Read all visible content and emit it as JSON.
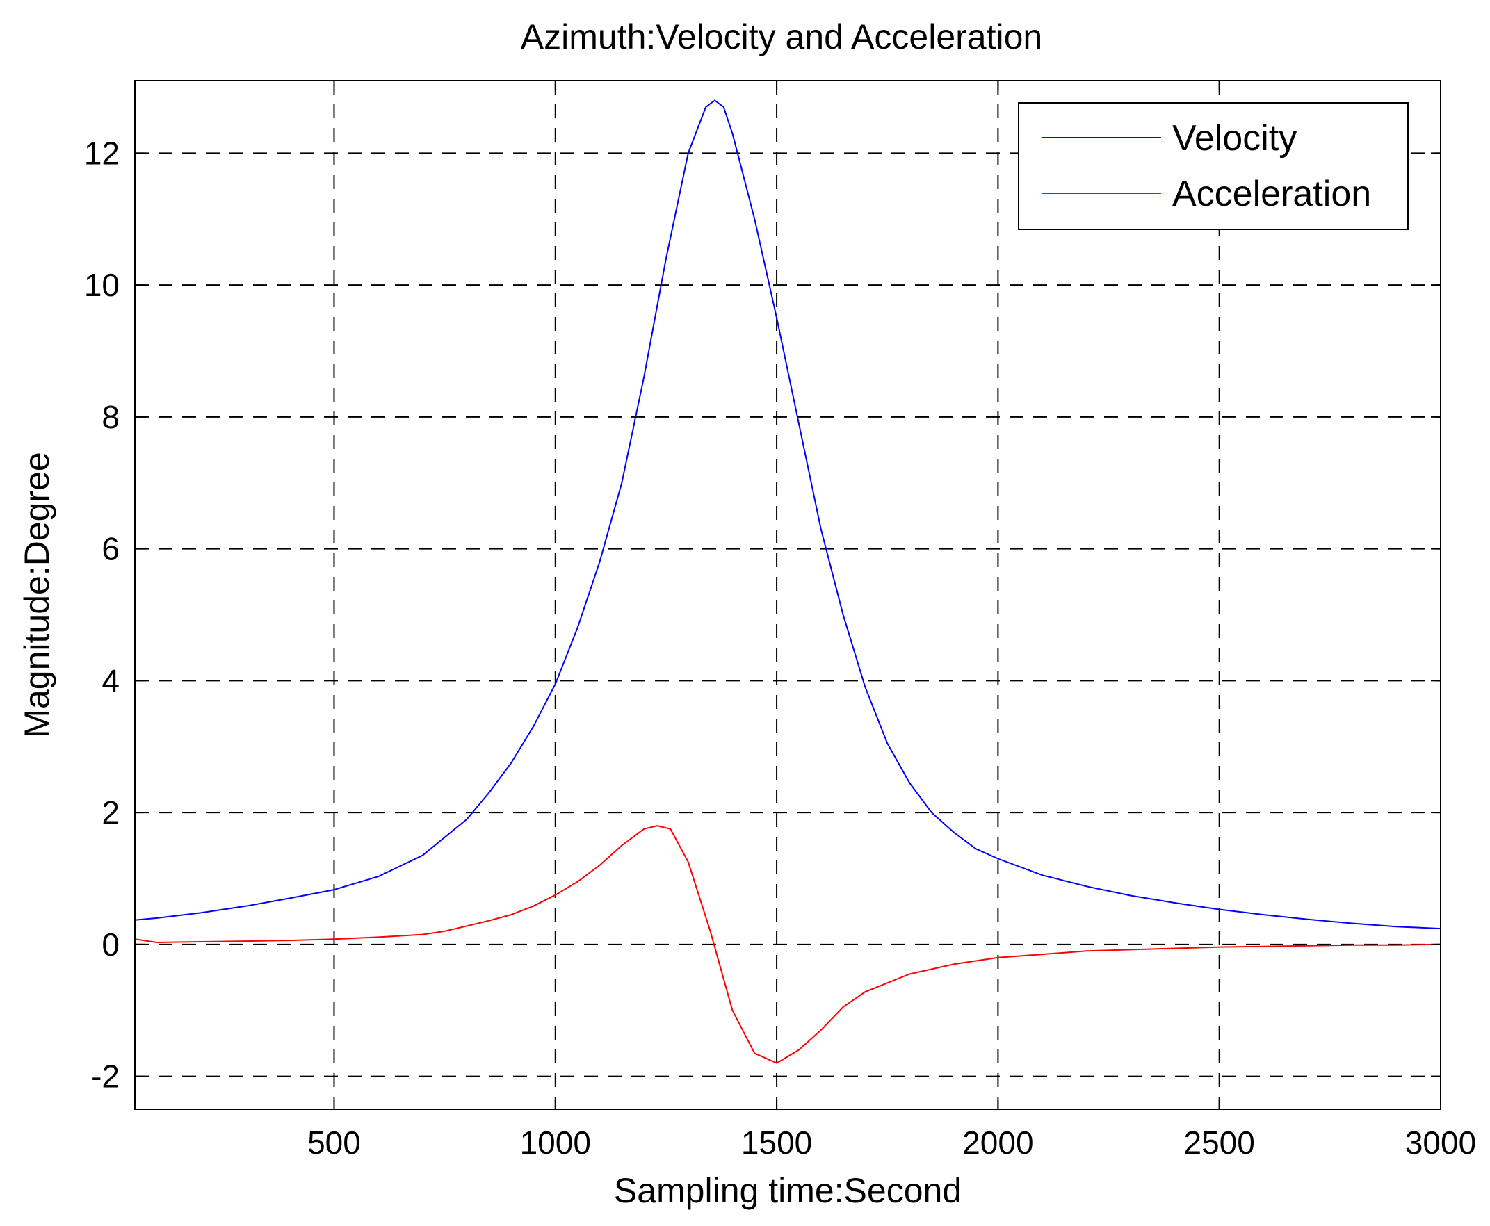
{
  "chart_data": {
    "type": "line",
    "title": "Azimuth:Velocity and Acceleration",
    "xlabel": "Sampling time:Second",
    "ylabel": "Magnitude:Degree",
    "xlim": [
      50,
      3000
    ],
    "ylim": [
      -2.5,
      13.1
    ],
    "xticks": [
      500,
      1000,
      1500,
      2000,
      2500,
      3000
    ],
    "yticks": [
      -2,
      0,
      2,
      4,
      6,
      8,
      10,
      12
    ],
    "grid": true,
    "legend_position": "top-right",
    "series": [
      {
        "name": "Velocity",
        "color": "#0000ff",
        "x": [
          50,
          100,
          200,
          300,
          400,
          500,
          600,
          700,
          800,
          850,
          900,
          950,
          1000,
          1050,
          1100,
          1150,
          1200,
          1250,
          1300,
          1340,
          1360,
          1380,
          1400,
          1450,
          1500,
          1550,
          1600,
          1650,
          1700,
          1750,
          1800,
          1850,
          1900,
          1950,
          2000,
          2100,
          2200,
          2300,
          2400,
          2500,
          2600,
          2700,
          2800,
          2900,
          3000
        ],
        "y": [
          0.37,
          0.4,
          0.48,
          0.58,
          0.7,
          0.83,
          1.03,
          1.35,
          1.9,
          2.3,
          2.75,
          3.3,
          3.95,
          4.8,
          5.8,
          7.0,
          8.6,
          10.4,
          12.0,
          12.7,
          12.8,
          12.7,
          12.3,
          11.0,
          9.5,
          7.9,
          6.3,
          5.0,
          3.9,
          3.05,
          2.45,
          2.0,
          1.7,
          1.45,
          1.3,
          1.05,
          0.88,
          0.74,
          0.63,
          0.53,
          0.45,
          0.38,
          0.32,
          0.27,
          0.24
        ]
      },
      {
        "name": "Acceleration",
        "color": "#ff0000",
        "x": [
          50,
          100,
          200,
          300,
          400,
          500,
          600,
          700,
          750,
          800,
          850,
          900,
          950,
          1000,
          1050,
          1100,
          1150,
          1200,
          1230,
          1260,
          1300,
          1350,
          1400,
          1450,
          1500,
          1550,
          1600,
          1650,
          1700,
          1800,
          1900,
          2000,
          2100,
          2200,
          2300,
          2400,
          2500,
          2600,
          2700,
          2800,
          2900,
          3000
        ],
        "y": [
          0.08,
          0.03,
          0.04,
          0.05,
          0.06,
          0.08,
          0.11,
          0.15,
          0.2,
          0.28,
          0.36,
          0.45,
          0.58,
          0.75,
          0.95,
          1.2,
          1.5,
          1.75,
          1.8,
          1.75,
          1.25,
          0.2,
          -1.0,
          -1.65,
          -1.8,
          -1.6,
          -1.3,
          -0.95,
          -0.72,
          -0.45,
          -0.3,
          -0.2,
          -0.15,
          -0.1,
          -0.08,
          -0.06,
          -0.04,
          -0.03,
          -0.02,
          -0.01,
          -0.01,
          0.0
        ]
      }
    ]
  }
}
